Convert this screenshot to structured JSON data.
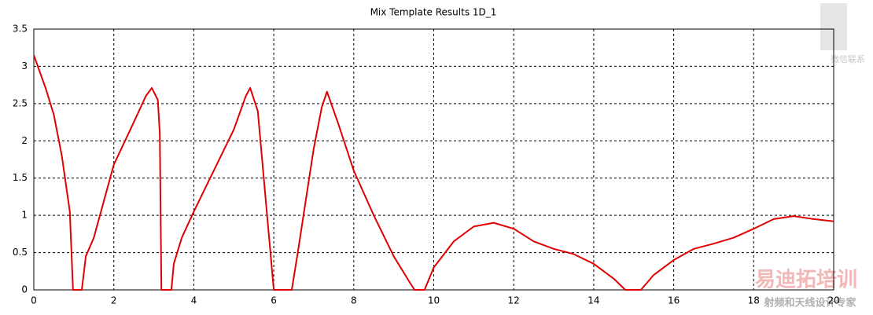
{
  "chart_data": {
    "type": "line",
    "title": "Mix Template Results 1D_1",
    "x": [
      0,
      0.3,
      0.5,
      0.7,
      0.9,
      0.98,
      1.2,
      1.3,
      1.5,
      2.0,
      2.5,
      2.8,
      2.95,
      3.1,
      3.15,
      3.19,
      3.44,
      3.5,
      3.7,
      4.0,
      4.5,
      5.0,
      5.3,
      5.41,
      5.6,
      5.8,
      6.0,
      6.45,
      6.6,
      6.8,
      7.0,
      7.2,
      7.33,
      7.6,
      8.0,
      8.5,
      9.0,
      9.4,
      9.52,
      9.77,
      10.0,
      10.5,
      11.0,
      11.5,
      12.0,
      12.5,
      13.0,
      13.5,
      14.0,
      14.5,
      14.79,
      15.18,
      15.5,
      16.0,
      16.5,
      17.0,
      17.5,
      18.0,
      18.5,
      19.0,
      19.5,
      20.0
    ],
    "series": [
      {
        "color": "#e00000",
        "values": [
          3.15,
          2.7,
          2.35,
          1.8,
          1.05,
          0,
          0,
          0.45,
          0.7,
          1.68,
          2.25,
          2.6,
          2.71,
          2.55,
          2.1,
          0,
          0,
          0.35,
          0.7,
          1.05,
          1.6,
          2.15,
          2.6,
          2.71,
          2.4,
          1.2,
          0,
          0,
          0.5,
          1.2,
          1.9,
          2.45,
          2.66,
          2.25,
          1.6,
          1.0,
          0.45,
          0.1,
          0,
          0,
          0.3,
          0.65,
          0.85,
          0.9,
          0.82,
          0.65,
          0.55,
          0.48,
          0.35,
          0.15,
          0,
          0,
          0.2,
          0.4,
          0.55,
          0.62,
          0.7,
          0.82,
          0.95,
          0.99,
          0.95,
          0.92
        ]
      }
    ],
    "xlim": [
      0,
      20
    ],
    "xticks": [
      0,
      2,
      4,
      6,
      8,
      10,
      12,
      14,
      16,
      18,
      20
    ],
    "ylim": [
      0,
      3.5
    ],
    "yticks": [
      0,
      0.5,
      1,
      1.5,
      2,
      2.5,
      3,
      3.5
    ],
    "grid": true
  },
  "watermark": {
    "qr_caption": "微信联系",
    "brand": "易迪拓培训",
    "tagline": "射频和天线设计专家"
  }
}
